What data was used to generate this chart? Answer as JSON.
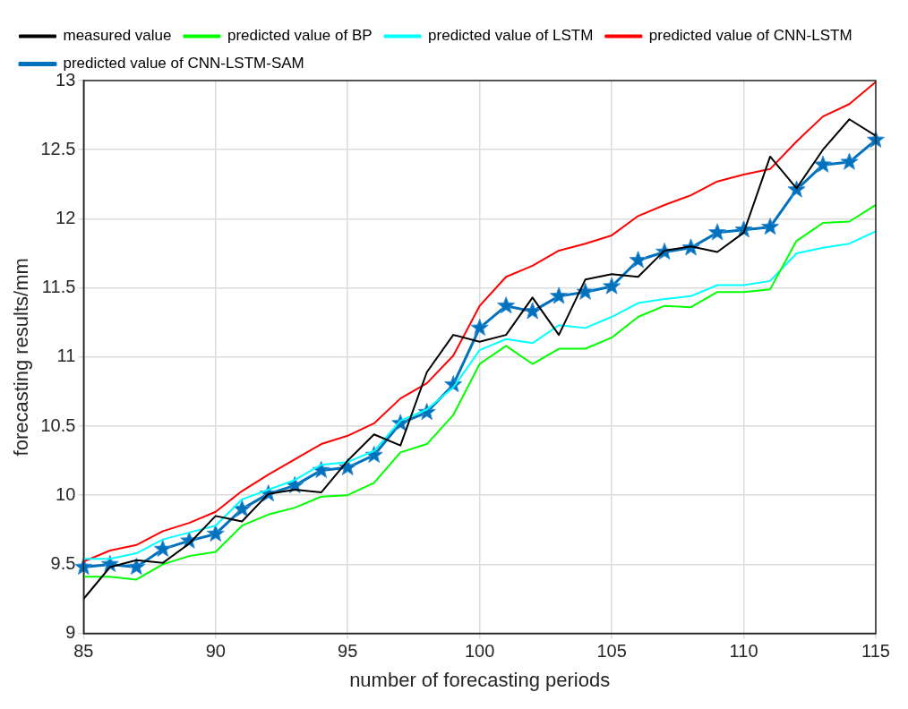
{
  "chart_data": {
    "type": "line",
    "xlabel": "number of forecasting periods",
    "ylabel": "forecasting results/mm",
    "x": [
      85,
      86,
      87,
      88,
      89,
      90,
      91,
      92,
      93,
      94,
      95,
      96,
      97,
      98,
      99,
      100,
      101,
      102,
      103,
      104,
      105,
      106,
      107,
      108,
      109,
      110,
      111,
      112,
      113,
      114,
      115
    ],
    "xlim": [
      85,
      115
    ],
    "xticks": [
      85,
      90,
      95,
      100,
      105,
      110,
      115
    ],
    "ylim": [
      9,
      13
    ],
    "yticks": [
      9,
      {
        "value": 9.5,
        "label": "9.5"
      },
      10,
      {
        "value": 10.5,
        "label": "10.5"
      },
      11,
      {
        "value": 11.5,
        "label": "11.5"
      },
      12,
      {
        "value": 12.5,
        "label": "12.5"
      },
      13
    ],
    "grid": true,
    "legend": "top left",
    "series": [
      {
        "name": "measured value",
        "color": "#000000",
        "marker": "none",
        "values": [
          9.25,
          9.48,
          9.53,
          9.51,
          9.65,
          9.85,
          9.81,
          10.01,
          10.04,
          10.02,
          10.25,
          10.44,
          10.36,
          10.89,
          11.16,
          11.11,
          11.16,
          11.43,
          11.16,
          11.56,
          11.6,
          11.58,
          11.77,
          11.8,
          11.76,
          11.9,
          12.45,
          12.22,
          12.5,
          12.72,
          12.6
        ]
      },
      {
        "name": "predicted value of BP",
        "color": "#00ff00",
        "marker": "none",
        "values": [
          9.41,
          9.41,
          9.39,
          9.5,
          9.56,
          9.59,
          9.78,
          9.86,
          9.91,
          9.99,
          10.0,
          10.09,
          10.31,
          10.37,
          10.58,
          10.95,
          11.08,
          10.95,
          11.06,
          11.06,
          11.14,
          11.29,
          11.37,
          11.36,
          11.47,
          11.47,
          11.49,
          11.84,
          11.97,
          11.98,
          12.1
        ]
      },
      {
        "name": "predicted value of LSTM",
        "color": "#00ffff",
        "marker": "none",
        "values": [
          9.54,
          9.54,
          9.58,
          9.68,
          9.73,
          9.78,
          9.97,
          10.04,
          10.11,
          10.22,
          10.24,
          10.32,
          10.54,
          10.62,
          10.78,
          11.05,
          11.13,
          11.1,
          11.23,
          11.21,
          11.29,
          11.39,
          11.42,
          11.44,
          11.52,
          11.52,
          11.55,
          11.75,
          11.79,
          11.82,
          11.91
        ]
      },
      {
        "name": "predicted value of CNN-LSTM",
        "color": "#ff0000",
        "marker": "none",
        "values": [
          9.52,
          9.6,
          9.64,
          9.74,
          9.8,
          9.88,
          10.03,
          10.15,
          10.26,
          10.37,
          10.43,
          10.52,
          10.7,
          10.81,
          11.01,
          11.37,
          11.58,
          11.66,
          11.77,
          11.82,
          11.88,
          12.02,
          12.1,
          12.17,
          12.27,
          12.32,
          12.36,
          12.56,
          12.74,
          12.83,
          12.99
        ]
      },
      {
        "name": "predicted value of CNN-LSTM-SAM",
        "color": "#0072bd",
        "marker": "star",
        "values": [
          9.48,
          9.5,
          9.48,
          9.61,
          9.67,
          9.72,
          9.9,
          10.01,
          10.07,
          10.18,
          10.2,
          10.29,
          10.52,
          10.6,
          10.8,
          11.21,
          11.37,
          11.33,
          11.44,
          11.47,
          11.51,
          11.7,
          11.76,
          11.79,
          11.9,
          11.92,
          11.94,
          12.21,
          12.39,
          12.41,
          12.57
        ]
      }
    ]
  }
}
